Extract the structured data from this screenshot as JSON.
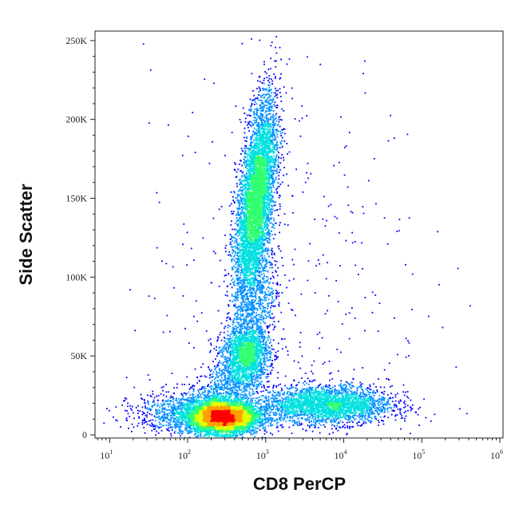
{
  "chart_data": {
    "type": "scatter",
    "title": "",
    "xlabel": "CD8 PerCP",
    "ylabel": "Side Scatter",
    "x_scale": "log",
    "xlim": [
      6.5,
      1100000
    ],
    "ylim": [
      -2000,
      256000
    ],
    "x_ticks": [
      {
        "value": 10,
        "base": "10",
        "exp": "1"
      },
      {
        "value": 100,
        "base": "10",
        "exp": "2"
      },
      {
        "value": 1000,
        "base": "10",
        "exp": "3"
      },
      {
        "value": 10000,
        "base": "10",
        "exp": "4"
      },
      {
        "value": 100000,
        "base": "10",
        "exp": "5"
      },
      {
        "value": 1000000,
        "base": "10",
        "exp": "6"
      }
    ],
    "y_ticks": [
      {
        "value": 0,
        "label": "0"
      },
      {
        "value": 50000,
        "label": "50K"
      },
      {
        "value": 100000,
        "label": "100K"
      },
      {
        "value": 150000,
        "label": "150K"
      },
      {
        "value": 200000,
        "label": "200K"
      },
      {
        "value": 250000,
        "label": "250K"
      }
    ],
    "grid": false,
    "legend": "none",
    "color_scale": [
      "#0000ff",
      "#0090ff",
      "#00e0e0",
      "#30ff70",
      "#e0ff00",
      "#ffa000",
      "#ff0000"
    ],
    "populations": [
      {
        "cx": 290,
        "cy": 11000,
        "sx": 0.22,
        "sy": 5000,
        "rho": 0,
        "n": 5200
      },
      {
        "cx": 130,
        "cy": 14000,
        "sx": 0.38,
        "sy": 7000,
        "rho": 0,
        "n": 1400
      },
      {
        "cx": 6000,
        "cy": 19000,
        "sx": 0.42,
        "sy": 6000,
        "rho": 0,
        "n": 2800
      },
      {
        "cx": 750,
        "cy": 148000,
        "sx": 0.13,
        "sy": 32000,
        "rho": 0.55,
        "n": 5600
      },
      {
        "cx": 560,
        "cy": 50000,
        "sx": 0.15,
        "sy": 9000,
        "rho": 0,
        "n": 1700
      },
      {
        "cx": 750,
        "cy": 80000,
        "sx": 0.15,
        "sy": 20000,
        "rho": 0.4,
        "n": 700
      },
      {
        "cx": 300,
        "cy": 30000,
        "sx": 0.2,
        "sy": 9000,
        "rho": 0.3,
        "n": 500
      },
      {
        "cx": 2000,
        "cy": 100000,
        "sx": 0.9,
        "sy": 70000,
        "rho": 0,
        "n": 350
      }
    ]
  }
}
